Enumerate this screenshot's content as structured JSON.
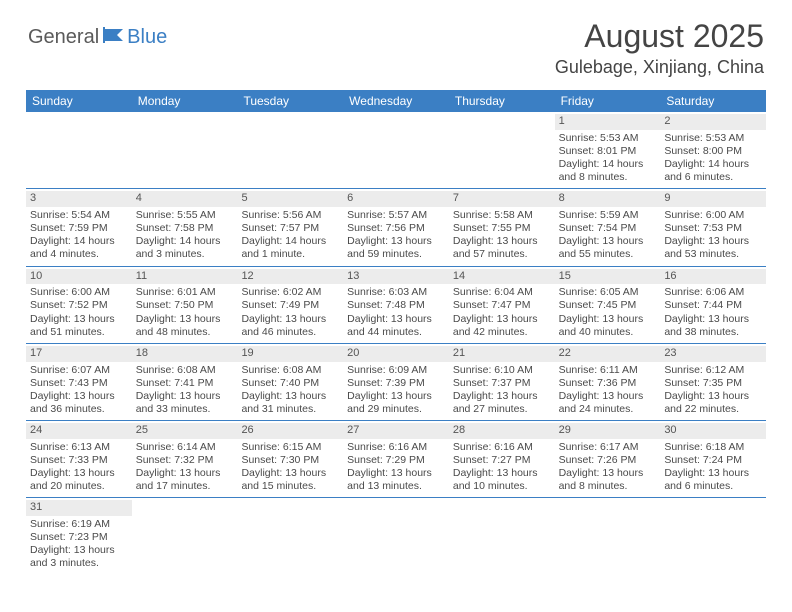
{
  "logo": {
    "part1": "General",
    "part2": "Blue"
  },
  "title": "August 2025",
  "location": "Gulebage, Xinjiang, China",
  "colors": {
    "header_bg": "#3b7fc4",
    "header_text": "#ffffff",
    "daynum_bg": "#ececec",
    "row_border": "#3b7fc4",
    "text": "#4a4a4a"
  },
  "day_headers": [
    "Sunday",
    "Monday",
    "Tuesday",
    "Wednesday",
    "Thursday",
    "Friday",
    "Saturday"
  ],
  "weeks": [
    [
      null,
      null,
      null,
      null,
      null,
      {
        "n": "1",
        "sr": "Sunrise: 5:53 AM",
        "ss": "Sunset: 8:01 PM",
        "dl": "Daylight: 14 hours and 8 minutes."
      },
      {
        "n": "2",
        "sr": "Sunrise: 5:53 AM",
        "ss": "Sunset: 8:00 PM",
        "dl": "Daylight: 14 hours and 6 minutes."
      }
    ],
    [
      {
        "n": "3",
        "sr": "Sunrise: 5:54 AM",
        "ss": "Sunset: 7:59 PM",
        "dl": "Daylight: 14 hours and 4 minutes."
      },
      {
        "n": "4",
        "sr": "Sunrise: 5:55 AM",
        "ss": "Sunset: 7:58 PM",
        "dl": "Daylight: 14 hours and 3 minutes."
      },
      {
        "n": "5",
        "sr": "Sunrise: 5:56 AM",
        "ss": "Sunset: 7:57 PM",
        "dl": "Daylight: 14 hours and 1 minute."
      },
      {
        "n": "6",
        "sr": "Sunrise: 5:57 AM",
        "ss": "Sunset: 7:56 PM",
        "dl": "Daylight: 13 hours and 59 minutes."
      },
      {
        "n": "7",
        "sr": "Sunrise: 5:58 AM",
        "ss": "Sunset: 7:55 PM",
        "dl": "Daylight: 13 hours and 57 minutes."
      },
      {
        "n": "8",
        "sr": "Sunrise: 5:59 AM",
        "ss": "Sunset: 7:54 PM",
        "dl": "Daylight: 13 hours and 55 minutes."
      },
      {
        "n": "9",
        "sr": "Sunrise: 6:00 AM",
        "ss": "Sunset: 7:53 PM",
        "dl": "Daylight: 13 hours and 53 minutes."
      }
    ],
    [
      {
        "n": "10",
        "sr": "Sunrise: 6:00 AM",
        "ss": "Sunset: 7:52 PM",
        "dl": "Daylight: 13 hours and 51 minutes."
      },
      {
        "n": "11",
        "sr": "Sunrise: 6:01 AM",
        "ss": "Sunset: 7:50 PM",
        "dl": "Daylight: 13 hours and 48 minutes."
      },
      {
        "n": "12",
        "sr": "Sunrise: 6:02 AM",
        "ss": "Sunset: 7:49 PM",
        "dl": "Daylight: 13 hours and 46 minutes."
      },
      {
        "n": "13",
        "sr": "Sunrise: 6:03 AM",
        "ss": "Sunset: 7:48 PM",
        "dl": "Daylight: 13 hours and 44 minutes."
      },
      {
        "n": "14",
        "sr": "Sunrise: 6:04 AM",
        "ss": "Sunset: 7:47 PM",
        "dl": "Daylight: 13 hours and 42 minutes."
      },
      {
        "n": "15",
        "sr": "Sunrise: 6:05 AM",
        "ss": "Sunset: 7:45 PM",
        "dl": "Daylight: 13 hours and 40 minutes."
      },
      {
        "n": "16",
        "sr": "Sunrise: 6:06 AM",
        "ss": "Sunset: 7:44 PM",
        "dl": "Daylight: 13 hours and 38 minutes."
      }
    ],
    [
      {
        "n": "17",
        "sr": "Sunrise: 6:07 AM",
        "ss": "Sunset: 7:43 PM",
        "dl": "Daylight: 13 hours and 36 minutes."
      },
      {
        "n": "18",
        "sr": "Sunrise: 6:08 AM",
        "ss": "Sunset: 7:41 PM",
        "dl": "Daylight: 13 hours and 33 minutes."
      },
      {
        "n": "19",
        "sr": "Sunrise: 6:08 AM",
        "ss": "Sunset: 7:40 PM",
        "dl": "Daylight: 13 hours and 31 minutes."
      },
      {
        "n": "20",
        "sr": "Sunrise: 6:09 AM",
        "ss": "Sunset: 7:39 PM",
        "dl": "Daylight: 13 hours and 29 minutes."
      },
      {
        "n": "21",
        "sr": "Sunrise: 6:10 AM",
        "ss": "Sunset: 7:37 PM",
        "dl": "Daylight: 13 hours and 27 minutes."
      },
      {
        "n": "22",
        "sr": "Sunrise: 6:11 AM",
        "ss": "Sunset: 7:36 PM",
        "dl": "Daylight: 13 hours and 24 minutes."
      },
      {
        "n": "23",
        "sr": "Sunrise: 6:12 AM",
        "ss": "Sunset: 7:35 PM",
        "dl": "Daylight: 13 hours and 22 minutes."
      }
    ],
    [
      {
        "n": "24",
        "sr": "Sunrise: 6:13 AM",
        "ss": "Sunset: 7:33 PM",
        "dl": "Daylight: 13 hours and 20 minutes."
      },
      {
        "n": "25",
        "sr": "Sunrise: 6:14 AM",
        "ss": "Sunset: 7:32 PM",
        "dl": "Daylight: 13 hours and 17 minutes."
      },
      {
        "n": "26",
        "sr": "Sunrise: 6:15 AM",
        "ss": "Sunset: 7:30 PM",
        "dl": "Daylight: 13 hours and 15 minutes."
      },
      {
        "n": "27",
        "sr": "Sunrise: 6:16 AM",
        "ss": "Sunset: 7:29 PM",
        "dl": "Daylight: 13 hours and 13 minutes."
      },
      {
        "n": "28",
        "sr": "Sunrise: 6:16 AM",
        "ss": "Sunset: 7:27 PM",
        "dl": "Daylight: 13 hours and 10 minutes."
      },
      {
        "n": "29",
        "sr": "Sunrise: 6:17 AM",
        "ss": "Sunset: 7:26 PM",
        "dl": "Daylight: 13 hours and 8 minutes."
      },
      {
        "n": "30",
        "sr": "Sunrise: 6:18 AM",
        "ss": "Sunset: 7:24 PM",
        "dl": "Daylight: 13 hours and 6 minutes."
      }
    ],
    [
      {
        "n": "31",
        "sr": "Sunrise: 6:19 AM",
        "ss": "Sunset: 7:23 PM",
        "dl": "Daylight: 13 hours and 3 minutes."
      },
      null,
      null,
      null,
      null,
      null,
      null
    ]
  ]
}
